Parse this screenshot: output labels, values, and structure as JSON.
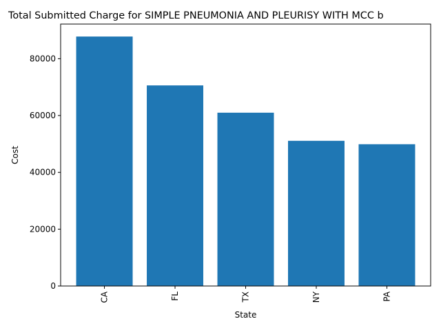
{
  "chart_data": {
    "type": "bar",
    "title": "Total Submitted Charge for SIMPLE PNEUMONIA AND PLEURISY WITH MCC b",
    "xlabel": "State",
    "ylabel": "Cost",
    "categories": [
      "CA",
      "FL",
      "TX",
      "NY",
      "PA"
    ],
    "values": [
      87800,
      70600,
      61000,
      51100,
      49900
    ],
    "ylim": [
      0,
      92190
    ],
    "yticks": [
      0,
      20000,
      40000,
      60000,
      80000
    ],
    "grid": false,
    "bar_color": "#1f77b4",
    "x_tick_rotation": "vertical"
  }
}
